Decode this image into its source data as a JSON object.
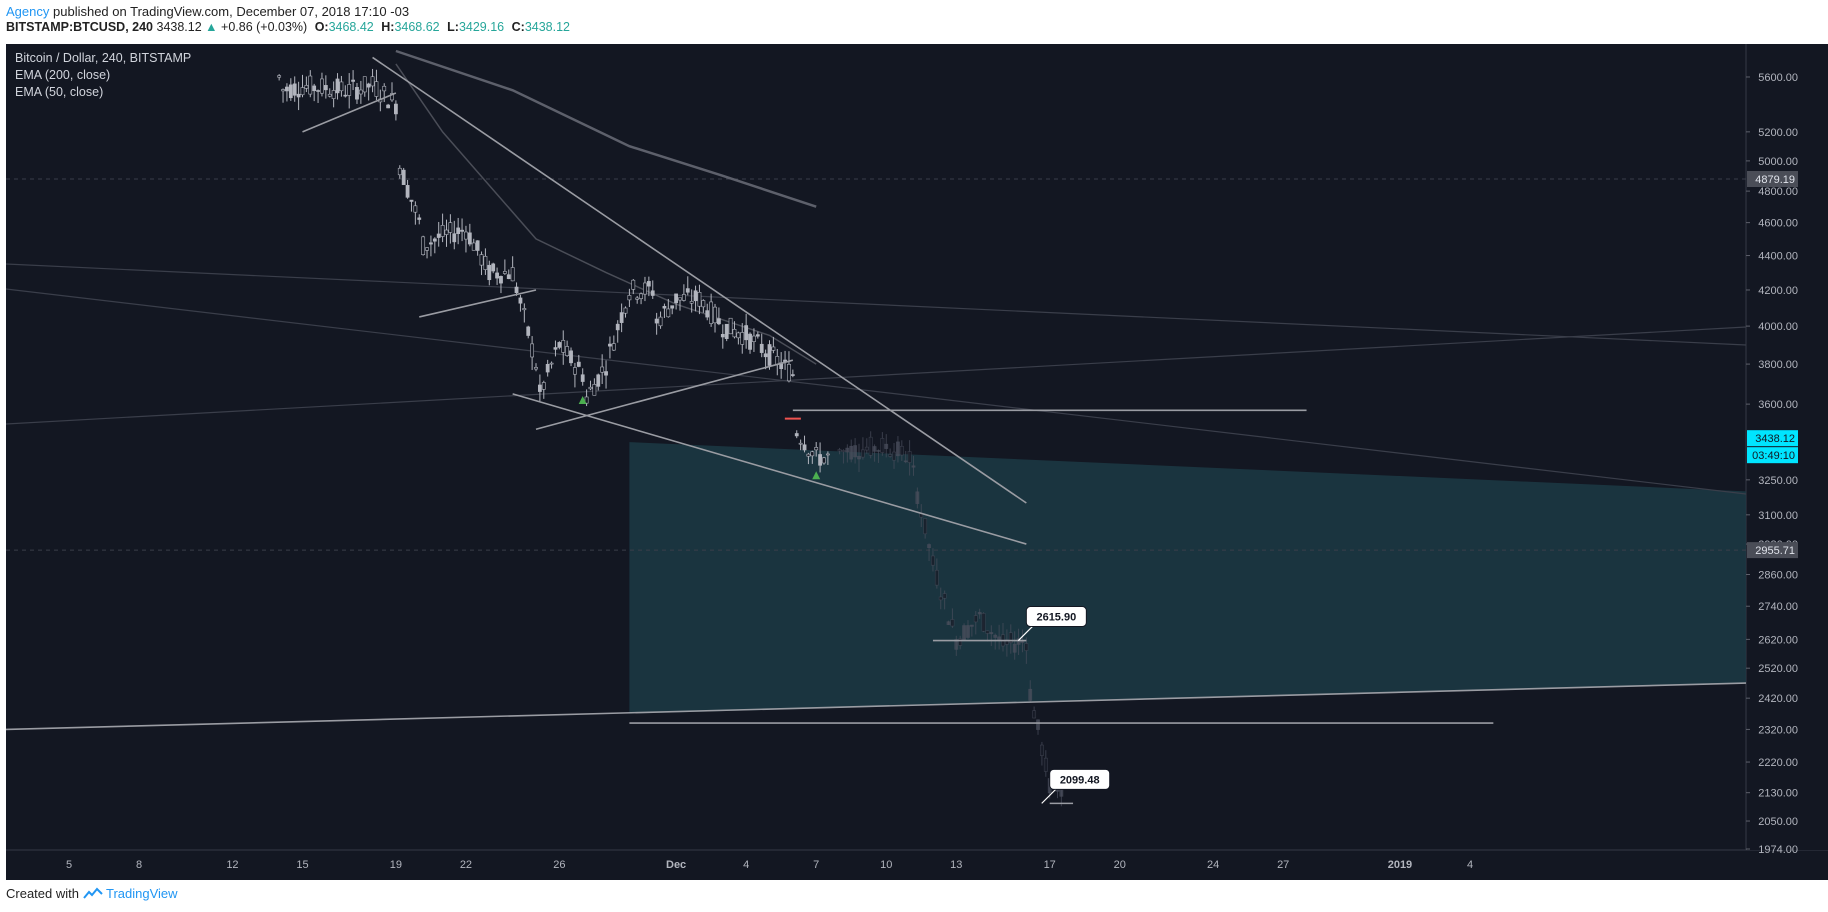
{
  "header": {
    "author": "Agency",
    "published_text": "published on TradingView.com, December 07, 2018 17:10 -03"
  },
  "quote": {
    "symbol": "BITSTAMP:BTCUSD, 240",
    "last": "3438.12",
    "change": "+0.86 (+0.03%)",
    "o_label": "O:",
    "o": "3468.42",
    "h_label": "H:",
    "h": "3468.62",
    "l_label": "L:",
    "l": "3429.16",
    "c_label": "C:",
    "c": "3438.12"
  },
  "legend": {
    "title": "Bitcoin / Dollar, 240, BITSTAMP",
    "indicators": [
      "EMA (200, close)",
      "EMA (50, close)"
    ]
  },
  "footer": {
    "created_with": "Created with",
    "brand": "TradingView"
  },
  "colors": {
    "background": "#131722",
    "candle_body": "#b2b5be",
    "drawing_line": "#9a9ca3",
    "projection_zone": "#1c3a44",
    "price_badge": "#00e5ff",
    "triangle_marker": "#4caf50",
    "accent_link": "#2196f3",
    "up_green": "#26a69a"
  },
  "chart_data": {
    "type": "candlestick",
    "title": "Bitcoin / Dollar, 240, BITSTAMP",
    "price_scale": "log",
    "ylim": [
      1974,
      5800
    ],
    "y_ticks": [
      "5600.00",
      "5200.00",
      "5000.00",
      "4800.00",
      "4600.00",
      "4400.00",
      "4200.00",
      "4000.00",
      "3800.00",
      "3600.00",
      "3250.00",
      "3100.00",
      "2980.00",
      "2860.00",
      "2740.00",
      "2620.00",
      "2520.00",
      "2420.00",
      "2320.00",
      "2220.00",
      "2130.00",
      "2050.00",
      "1974.00"
    ],
    "x_ticks": [
      "5",
      "8",
      "12",
      "15",
      "19",
      "22",
      "26",
      "Dec",
      "4",
      "7",
      "10",
      "13",
      "17",
      "20",
      "24",
      "27",
      "2019",
      "4"
    ],
    "price_badges": [
      {
        "value": "4879.19",
        "price": 4879.19
      },
      {
        "value": "3438.12",
        "price": 3438.12,
        "countdown": "03:49:10"
      },
      {
        "value": "2955.71",
        "price": 2955.71
      }
    ],
    "projection_labels": [
      {
        "text": "2615.90",
        "price": 2615.9,
        "date": "2018-12-16"
      },
      {
        "text": "2099.48",
        "price": 2099.48,
        "date": "2018-12-17"
      }
    ],
    "price_path": [
      {
        "date": "2018-11-14",
        "price": 5600
      },
      {
        "date": "2018-11-14",
        "price": 5500
      },
      {
        "date": "2018-11-15",
        "price": 5530
      },
      {
        "date": "2018-11-16",
        "price": 5520
      },
      {
        "date": "2018-11-17",
        "price": 5500
      },
      {
        "date": "2018-11-18",
        "price": 5540
      },
      {
        "date": "2018-11-19",
        "price": 5400
      },
      {
        "date": "2018-11-19",
        "price": 5050
      },
      {
        "date": "2018-11-20",
        "price": 4600
      },
      {
        "date": "2018-11-20",
        "price": 4450
      },
      {
        "date": "2018-11-21",
        "price": 4520
      },
      {
        "date": "2018-11-22",
        "price": 4560
      },
      {
        "date": "2018-11-23",
        "price": 4300
      },
      {
        "date": "2018-11-24",
        "price": 4300
      },
      {
        "date": "2018-11-25",
        "price": 3800
      },
      {
        "date": "2018-11-25",
        "price": 3600
      },
      {
        "date": "2018-11-26",
        "price": 3900
      },
      {
        "date": "2018-11-27",
        "price": 3750
      },
      {
        "date": "2018-11-27",
        "price": 3600
      },
      {
        "date": "2018-11-28",
        "price": 3800
      },
      {
        "date": "2018-11-29",
        "price": 4200
      },
      {
        "date": "2018-11-30",
        "price": 4200
      },
      {
        "date": "2018-11-30",
        "price": 4000
      },
      {
        "date": "2018-12-01",
        "price": 4150
      },
      {
        "date": "2018-12-02",
        "price": 4150
      },
      {
        "date": "2018-12-03",
        "price": 4000
      },
      {
        "date": "2018-12-04",
        "price": 3950
      },
      {
        "date": "2018-12-05",
        "price": 3850
      },
      {
        "date": "2018-12-06",
        "price": 3750
      },
      {
        "date": "2018-12-06",
        "price": 3500
      },
      {
        "date": "2018-12-07",
        "price": 3350
      },
      {
        "date": "2018-12-07",
        "price": 3438.12
      }
    ],
    "projection_path": [
      {
        "date": "2018-12-08",
        "price": 3380
      },
      {
        "date": "2018-12-10",
        "price": 3400
      },
      {
        "date": "2018-12-11",
        "price": 3350
      },
      {
        "date": "2018-12-12",
        "price": 2900
      },
      {
        "date": "2018-12-13",
        "price": 2620
      },
      {
        "date": "2018-12-14",
        "price": 2700
      },
      {
        "date": "2018-12-15",
        "price": 2600
      },
      {
        "date": "2018-12-16",
        "price": 2615.9
      },
      {
        "date": "2018-12-16",
        "price": 2500
      },
      {
        "date": "2018-12-17",
        "price": 2150
      },
      {
        "date": "2018-12-17",
        "price": 2099.48
      }
    ],
    "ema200": [
      {
        "date": "2018-11-19",
        "price": 5800
      },
      {
        "date": "2018-11-24",
        "price": 5500
      },
      {
        "date": "2018-11-29",
        "price": 5100
      },
      {
        "date": "2018-12-03",
        "price": 4900
      },
      {
        "date": "2018-12-07",
        "price": 4700
      }
    ],
    "ema50": [
      {
        "date": "2018-11-19",
        "price": 5700
      },
      {
        "date": "2018-11-21",
        "price": 5200
      },
      {
        "date": "2018-11-25",
        "price": 4500
      },
      {
        "date": "2018-11-28",
        "price": 4300
      },
      {
        "date": "2018-12-01",
        "price": 4120
      },
      {
        "date": "2018-12-05",
        "price": 3950
      },
      {
        "date": "2018-12-07",
        "price": 3800
      }
    ]
  }
}
